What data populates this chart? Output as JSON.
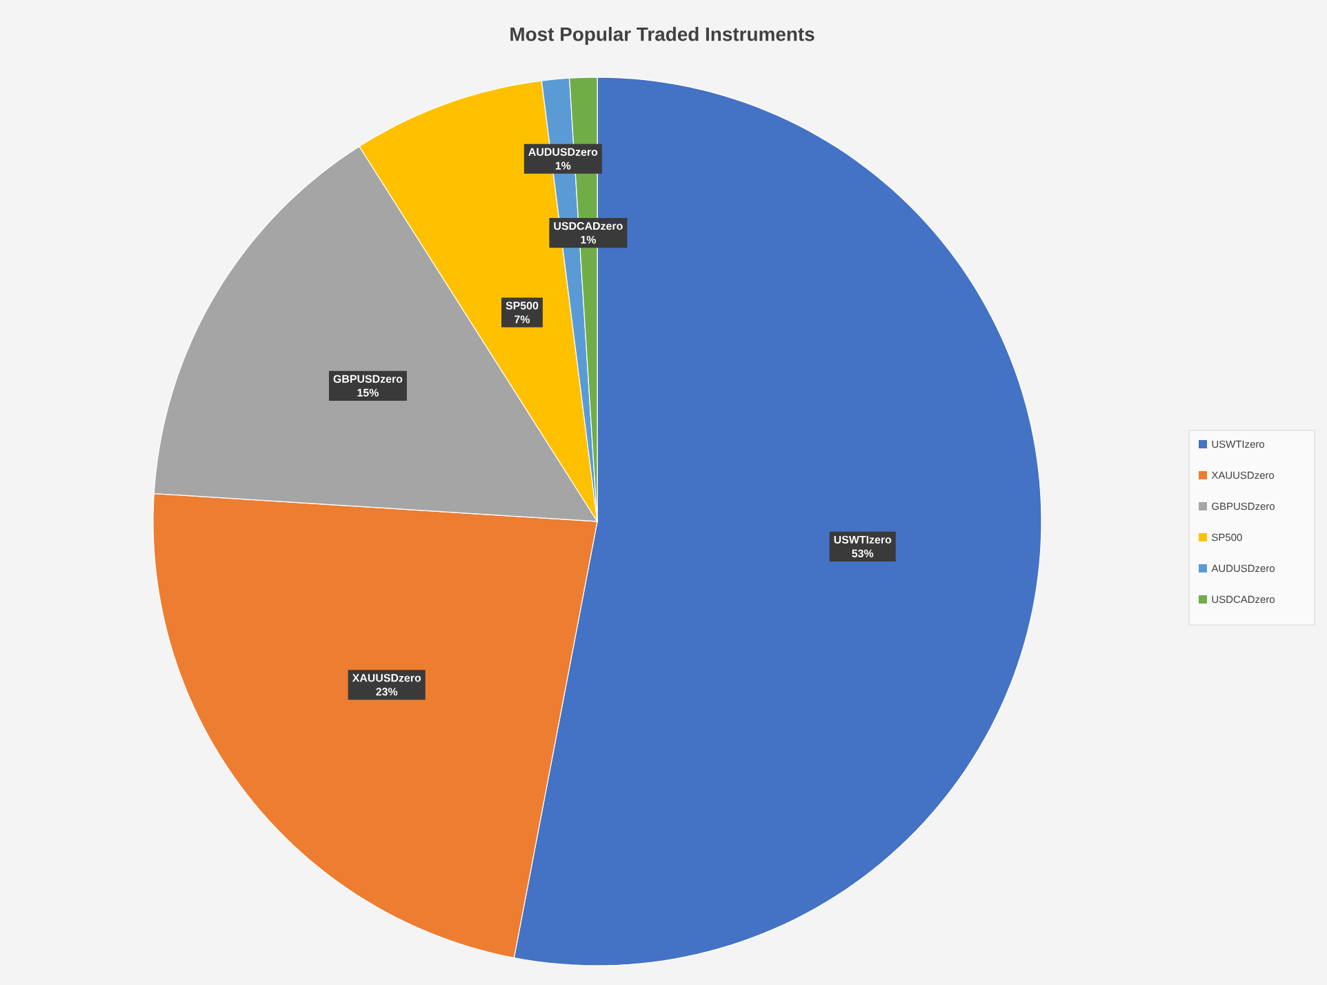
{
  "chart_data": {
    "type": "pie",
    "title": "Most Popular Traded Instruments",
    "categories": [
      "USWTIzero",
      "XAUUSDzero",
      "GBPUSDzero",
      "SP500",
      "AUDUSDzero",
      "USDCADzero"
    ],
    "values": [
      53,
      23,
      15,
      7,
      1,
      1
    ],
    "value_labels": [
      "53%",
      "23%",
      "15%",
      "7%",
      "1%",
      "1%"
    ],
    "colors": [
      "#4472c4",
      "#ed7d31",
      "#a5a5a5",
      "#ffc000",
      "#5b9bd5",
      "#70ad47"
    ],
    "legend": "right"
  }
}
